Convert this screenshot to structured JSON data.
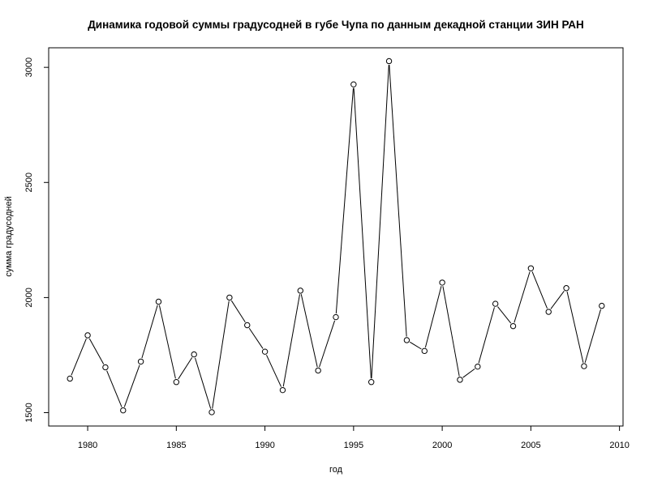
{
  "chart_data": {
    "type": "line",
    "title": "Динамика годовой суммы градусодней в губе Чупа по данным декадной станции ЗИН РАН",
    "xlabel": "год",
    "ylabel": "сумма градусодней",
    "x": [
      1979,
      1980,
      1981,
      1982,
      1983,
      1984,
      1985,
      1986,
      1987,
      1988,
      1989,
      1990,
      1991,
      1992,
      1993,
      1994,
      1995,
      1996,
      1997,
      1998,
      1999,
      2000,
      2001,
      2002,
      2003,
      2004,
      2005,
      2006,
      2007,
      2008,
      2009
    ],
    "series": [
      {
        "values": [
          1648,
          1836,
          1697,
          1510,
          1722,
          1982,
          1633,
          1753,
          1502,
          2000,
          1880,
          1765,
          1598,
          2030,
          1683,
          1915,
          2926,
          1633,
          3027,
          1815,
          1768,
          2065,
          1643,
          1700,
          1973,
          1876,
          2127,
          1938,
          2041,
          1702,
          1964
        ]
      }
    ],
    "xlim": [
      1977.8,
      2010.2
    ],
    "ylim": [
      1442,
      3085
    ],
    "x_ticks": [
      "1980",
      "1985",
      "1990",
      "1995",
      "2000",
      "2005",
      "2010"
    ],
    "y_ticks": [
      "1500",
      "2000",
      "2500",
      "3000"
    ],
    "marker": "open-circle",
    "line_color": "#000000",
    "grid": false,
    "legend": "none"
  }
}
